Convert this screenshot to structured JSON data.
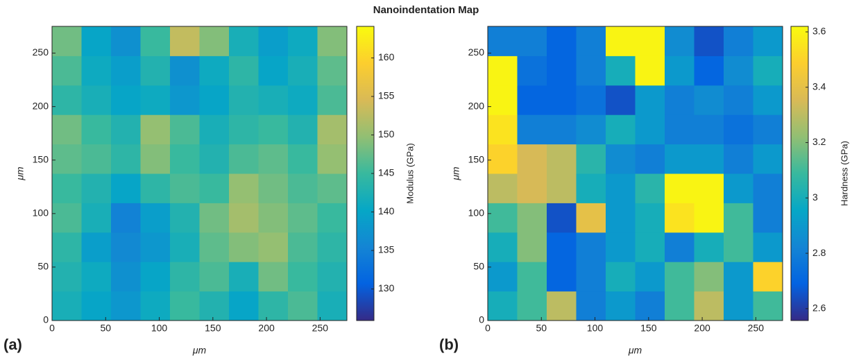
{
  "title": "Nanoindentation Map",
  "chart_data": [
    {
      "type": "heatmap",
      "panel_label": "(a)",
      "xlabel": "μm",
      "ylabel": "μm",
      "colorbar_label": "Modulus (GPa)",
      "xlim": [
        0,
        275
      ],
      "ylim": [
        0,
        275
      ],
      "xticks": [
        0,
        50,
        100,
        150,
        200,
        250
      ],
      "yticks": [
        0,
        50,
        100,
        150,
        200,
        250
      ],
      "clim": [
        125.9,
        164.1
      ],
      "cticks": [
        130,
        135,
        140,
        145,
        150,
        155,
        160
      ],
      "colormap": [
        "#352a87",
        "#0363e1",
        "#1485d4",
        "#06a7c6",
        "#38b99e",
        "#92bf73",
        "#d9ba56",
        "#fcce2e",
        "#f9fb0e"
      ],
      "x": [
        13.75,
        41.25,
        68.75,
        96.25,
        123.75,
        151.25,
        178.75,
        206.25,
        233.75,
        261.25
      ],
      "y": [
        13.75,
        41.25,
        68.75,
        96.25,
        123.75,
        151.25,
        178.75,
        206.25,
        233.75,
        261.25
      ],
      "z": [
        [
          142,
          140,
          138,
          141,
          145,
          143,
          140,
          144,
          146,
          142
        ],
        [
          143,
          141,
          137,
          140,
          144,
          146,
          142,
          148,
          145,
          143
        ],
        [
          144,
          139,
          136,
          138,
          142,
          147,
          149,
          150,
          146,
          144
        ],
        [
          146,
          142,
          135,
          139,
          143,
          148,
          151,
          149,
          147,
          145
        ],
        [
          145,
          143,
          140,
          144,
          146,
          145,
          150,
          148,
          146,
          147
        ],
        [
          147,
          146,
          144,
          149,
          145,
          143,
          146,
          147,
          145,
          150
        ],
        [
          148,
          145,
          143,
          150,
          146,
          142,
          144,
          145,
          143,
          151
        ],
        [
          144,
          142,
          140,
          141,
          138,
          140,
          143,
          142,
          141,
          146
        ],
        [
          146,
          141,
          139,
          143,
          137,
          141,
          144,
          140,
          142,
          147
        ],
        [
          148,
          140,
          137,
          145,
          153,
          149,
          142,
          139,
          141,
          149
        ]
      ]
    },
    {
      "type": "heatmap",
      "panel_label": "(b)",
      "xlabel": "μm",
      "ylabel": "μm",
      "colorbar_label": "Hardness (GPa)",
      "xlim": [
        0,
        275
      ],
      "ylim": [
        0,
        275
      ],
      "xticks": [
        0,
        50,
        100,
        150,
        200,
        250
      ],
      "yticks": [
        0,
        50,
        100,
        150,
        200,
        250
      ],
      "clim": [
        2.557,
        3.62
      ],
      "cticks": [
        2.6,
        2.8,
        3,
        3.2,
        3.4,
        3.6
      ],
      "colormap": [
        "#352a87",
        "#0363e1",
        "#1485d4",
        "#06a7c6",
        "#38b99e",
        "#92bf73",
        "#d9ba56",
        "#fcce2e",
        "#f9fb0e"
      ],
      "x": [
        13.75,
        41.25,
        68.75,
        96.25,
        123.75,
        151.25,
        178.75,
        206.25,
        233.75,
        261.25
      ],
      "y": [
        13.75,
        41.25,
        68.75,
        96.25,
        123.75,
        151.25,
        178.75,
        206.25,
        233.75,
        261.25
      ],
      "z": [
        [
          3.0,
          3.1,
          3.3,
          2.8,
          2.9,
          2.8,
          3.1,
          3.3,
          2.9,
          3.1
        ],
        [
          2.9,
          3.1,
          2.7,
          2.8,
          3.0,
          2.9,
          3.1,
          3.2,
          2.9,
          3.5
        ],
        [
          3.0,
          3.2,
          2.7,
          2.8,
          2.9,
          3.0,
          2.8,
          3.0,
          3.1,
          2.9
        ],
        [
          3.1,
          3.2,
          2.65,
          3.4,
          2.9,
          3.0,
          3.55,
          3.6,
          3.1,
          2.8
        ],
        [
          3.3,
          3.35,
          3.3,
          3.0,
          2.9,
          3.05,
          3.6,
          3.6,
          2.9,
          2.8
        ],
        [
          3.5,
          3.35,
          3.3,
          3.05,
          2.85,
          2.8,
          2.9,
          2.9,
          2.8,
          2.9
        ],
        [
          3.55,
          2.8,
          2.8,
          2.85,
          3.0,
          2.9,
          2.8,
          2.8,
          2.75,
          2.8
        ],
        [
          3.6,
          2.7,
          2.7,
          2.75,
          2.65,
          2.9,
          2.8,
          2.85,
          2.8,
          2.9
        ],
        [
          3.6,
          2.75,
          2.7,
          2.8,
          3.0,
          3.6,
          2.9,
          2.7,
          2.85,
          3.0
        ],
        [
          2.8,
          2.8,
          2.7,
          2.8,
          3.6,
          3.6,
          2.85,
          2.65,
          2.8,
          2.9
        ]
      ]
    }
  ]
}
